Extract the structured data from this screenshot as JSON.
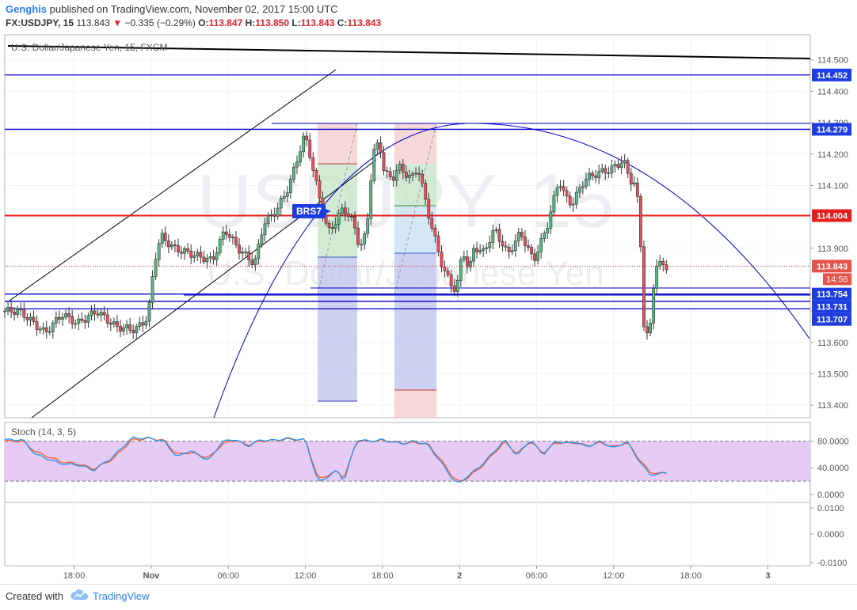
{
  "header": {
    "author": "Genghis",
    "published_text": "published on TradingView.com, November 02, 2017 15:00 UTC",
    "symbol": "FX:USDJPY, 15",
    "last_price": "113.843",
    "change_arrow": "▼",
    "change": "−0.335 (−0.29%)",
    "o_label": "O:",
    "o_value": "113.847",
    "h_label": "H:",
    "h_value": "113.850",
    "l_label": "L:",
    "l_value": "113.843",
    "c_label": "C:",
    "c_value": "113.843"
  },
  "chart_data": {
    "type": "candlestick",
    "instrument_label": "U.S. Dollar/Japanese Yen, 15, FXCM",
    "watermark_symbol": "USDJPY, 15",
    "watermark_name": "U.S. Dollar/Japanese Yen",
    "y_ticks": [
      "114.500",
      "114.400",
      "114.300",
      "114.200",
      "114.100",
      "113.900",
      "113.700",
      "113.600",
      "113.500",
      "113.400"
    ],
    "y_tick_values": [
      114.5,
      114.4,
      114.3,
      114.2,
      114.1,
      113.9,
      113.7,
      113.6,
      113.5,
      113.4
    ],
    "ylim": [
      113.36,
      114.58
    ],
    "x_ticks": [
      "18:00",
      "Nov",
      "06:00",
      "12:00",
      "18:00",
      "2",
      "06:00",
      "12:00",
      "18:00",
      "3"
    ],
    "x_tick_hours": [
      18,
      24,
      30,
      36,
      42,
      48,
      54,
      60,
      66,
      72
    ],
    "xlim_hours": [
      12.6,
      75.3
    ],
    "candle_interval_minutes": 15,
    "closes_anchor_hours": [
      12.6,
      14,
      16,
      17.3,
      18.5,
      20,
      21.5,
      23,
      24,
      24.5,
      25,
      26,
      27.5,
      29,
      30,
      31,
      32.3,
      33,
      34,
      35,
      35.5,
      36.2,
      36.5,
      37,
      38,
      38.7,
      39.2,
      40,
      40.5,
      41,
      41.5,
      42,
      42.4,
      43,
      43.5,
      44,
      44.5,
      45,
      46,
      47,
      48,
      48.5,
      49,
      49.3,
      49.7,
      50,
      51,
      52,
      53,
      54,
      55,
      56,
      56.5,
      57,
      57.5,
      58,
      59,
      60,
      61,
      61.5,
      62,
      62.3,
      62.6,
      63,
      63.3,
      63.5,
      64.3
    ],
    "closes_anchor_values": [
      113.7,
      113.7,
      113.63,
      113.69,
      113.66,
      113.7,
      113.65,
      113.64,
      113.68,
      113.86,
      113.94,
      113.9,
      113.88,
      113.86,
      113.96,
      113.9,
      113.85,
      113.98,
      114.02,
      114.1,
      114.17,
      114.26,
      114.22,
      114.12,
      113.95,
      113.99,
      114.03,
      113.98,
      113.9,
      113.95,
      114.2,
      114.24,
      114.14,
      114.12,
      114.16,
      114.14,
      114.12,
      114.16,
      113.98,
      113.83,
      113.76,
      113.9,
      113.82,
      113.9,
      113.9,
      113.88,
      113.96,
      113.88,
      113.95,
      113.86,
      113.96,
      114.12,
      114.06,
      114.04,
      114.08,
      114.12,
      114.14,
      114.15,
      114.18,
      114.12,
      114.1,
      113.96,
      113.66,
      113.6,
      113.76,
      113.85,
      113.843
    ],
    "levels": [
      {
        "label": "114.452",
        "value": 114.452,
        "color": "#0000cc"
      },
      {
        "label": "114.279",
        "value": 114.279,
        "color": "#0000cc"
      },
      {
        "label": "114.004",
        "value": 114.004,
        "color": "#e51d1d"
      },
      {
        "label": "113.754",
        "value": 113.754,
        "color": "#0000cc"
      },
      {
        "label": "113.731",
        "value": 113.731,
        "color": "#0000cc"
      },
      {
        "label": "113.707",
        "value": 113.707,
        "color": "#0000cc"
      }
    ],
    "current_price_label": "113.843",
    "current_price": 113.843,
    "countdown_label": "14:56",
    "annotation_label": "BRS7",
    "stoch": {
      "label": "Stoch (14, 3, 5)",
      "y_ticks": [
        "80.0000",
        "40.0000",
        "0.0000"
      ],
      "y_tick_values": [
        80,
        40,
        0
      ],
      "band": [
        20,
        80
      ],
      "ylim": [
        -12,
        108
      ],
      "anchor_hours": [
        12.6,
        14,
        15,
        17,
        18.5,
        19.5,
        21,
        22.5,
        24,
        25,
        26,
        27,
        28.5,
        29.5,
        30.5,
        31.5,
        32.5,
        33.5,
        34.5,
        36,
        37,
        38.5,
        39,
        40,
        41,
        42,
        42.5,
        43.5,
        44.5,
        45.5,
        46.5,
        47.5,
        48,
        48.5,
        49.5,
        50.5,
        51.5,
        52.5,
        53.5,
        54.5,
        55.5,
        56.5,
        57,
        57.5,
        58,
        59,
        60,
        61,
        61.5,
        62,
        62.8,
        63.5,
        64.3
      ],
      "k_values": [
        82,
        82,
        60,
        46,
        44,
        36,
        56,
        85,
        84,
        80,
        56,
        66,
        51,
        79,
        83,
        72,
        82,
        81,
        84,
        82,
        18,
        36,
        20,
        82,
        80,
        82,
        80,
        76,
        80,
        75,
        50,
        22,
        16,
        26,
        40,
        60,
        82,
        58,
        82,
        60,
        80,
        76,
        80,
        74,
        72,
        80,
        69,
        80,
        65,
        50,
        30,
        30,
        35
      ],
      "d_values": [
        80,
        80,
        64,
        49,
        45,
        38,
        53,
        82,
        84,
        81,
        60,
        63,
        55,
        75,
        82,
        74,
        80,
        81,
        83,
        82,
        23,
        35,
        24,
        80,
        80,
        81,
        80,
        77,
        78,
        76,
        53,
        26,
        18,
        24,
        38,
        58,
        79,
        61,
        80,
        62,
        78,
        77,
        78,
        75,
        73,
        78,
        71,
        78,
        67,
        52,
        34,
        31,
        33
      ]
    },
    "empty_pane_y_ticks": [
      "0.0100",
      "0.0000",
      "-0.0100"
    ]
  },
  "footer": {
    "created_with": "Created with",
    "brand": "TradingView"
  },
  "colors": {
    "bull": "#53b987",
    "bear": "#eb4d5c",
    "stoch_k": "#2196f3",
    "stoch_d": "#ff5722",
    "stoch_band": "#e6ccf5"
  }
}
